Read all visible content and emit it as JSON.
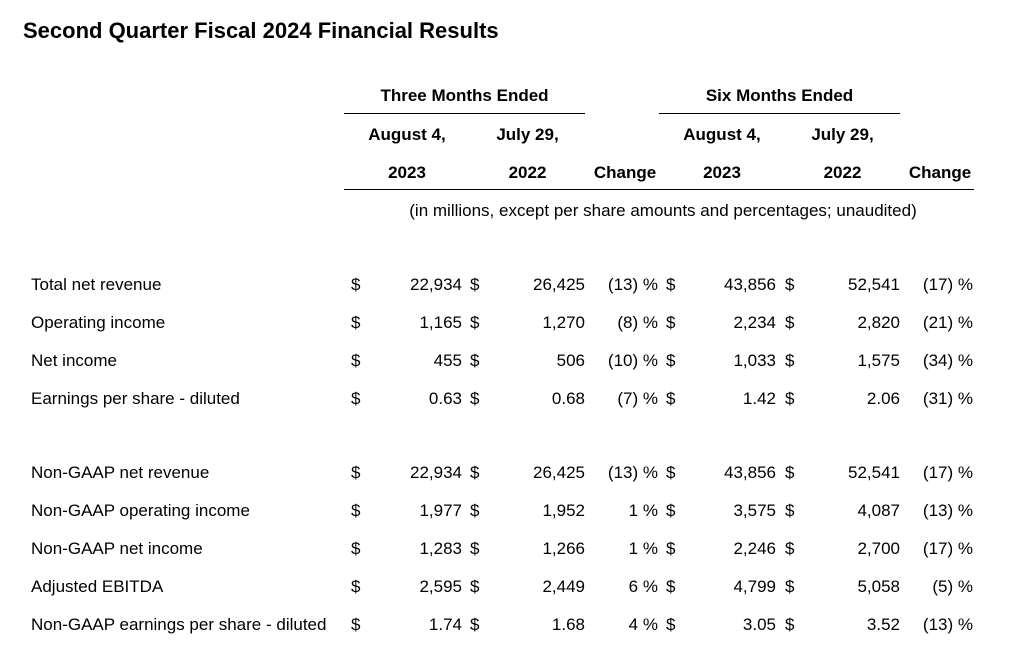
{
  "title": "Second Quarter Fiscal 2024 Financial Results",
  "header": {
    "three_months": "Three Months Ended",
    "six_months": "Six Months Ended",
    "col_date_1": "August 4,",
    "col_date_2": "July 29,",
    "col_year_1": "2023",
    "col_year_2": "2022",
    "change": "Change",
    "note": "(in millions, except per share amounts and percentages; unaudited)"
  },
  "currency_symbol": "$",
  "pct_symbol": "%",
  "group1": [
    {
      "label": "Total net revenue",
      "q_2023": "22,934",
      "q_2022": "26,425",
      "q_change": "(13)",
      "h_2023": "43,856",
      "h_2022": "52,541",
      "h_change": "(17)"
    },
    {
      "label": "Operating income",
      "q_2023": "1,165",
      "q_2022": "1,270",
      "q_change": "(8)",
      "h_2023": "2,234",
      "h_2022": "2,820",
      "h_change": "(21)"
    },
    {
      "label": "Net income",
      "q_2023": "455",
      "q_2022": "506",
      "q_change": "(10)",
      "h_2023": "1,033",
      "h_2022": "1,575",
      "h_change": "(34)"
    },
    {
      "label": "Earnings per share - diluted",
      "q_2023": "0.63",
      "q_2022": "0.68",
      "q_change": "(7)",
      "h_2023": "1.42",
      "h_2022": "2.06",
      "h_change": "(31)"
    }
  ],
  "group2": [
    {
      "label": "Non-GAAP net revenue",
      "q_2023": "22,934",
      "q_2022": "26,425",
      "q_change": "(13)",
      "h_2023": "43,856",
      "h_2022": "52,541",
      "h_change": "(17)"
    },
    {
      "label": "Non-GAAP operating income",
      "q_2023": "1,977",
      "q_2022": "1,952",
      "q_change": "1",
      "h_2023": "3,575",
      "h_2022": "4,087",
      "h_change": "(13)"
    },
    {
      "label": "Non-GAAP net income",
      "q_2023": "1,283",
      "q_2022": "1,266",
      "q_change": "1",
      "h_2023": "2,246",
      "h_2022": "2,700",
      "h_change": "(17)"
    },
    {
      "label": "Adjusted EBITDA",
      "q_2023": "2,595",
      "q_2022": "2,449",
      "q_change": "6",
      "h_2023": "4,799",
      "h_2022": "5,058",
      "h_change": "(5)"
    },
    {
      "label": "Non-GAAP earnings per share - diluted",
      "q_2023": "1.74",
      "q_2022": "1.68",
      "q_change": "4",
      "h_2023": "3.05",
      "h_2022": "3.52",
      "h_change": "(13)"
    }
  ]
}
